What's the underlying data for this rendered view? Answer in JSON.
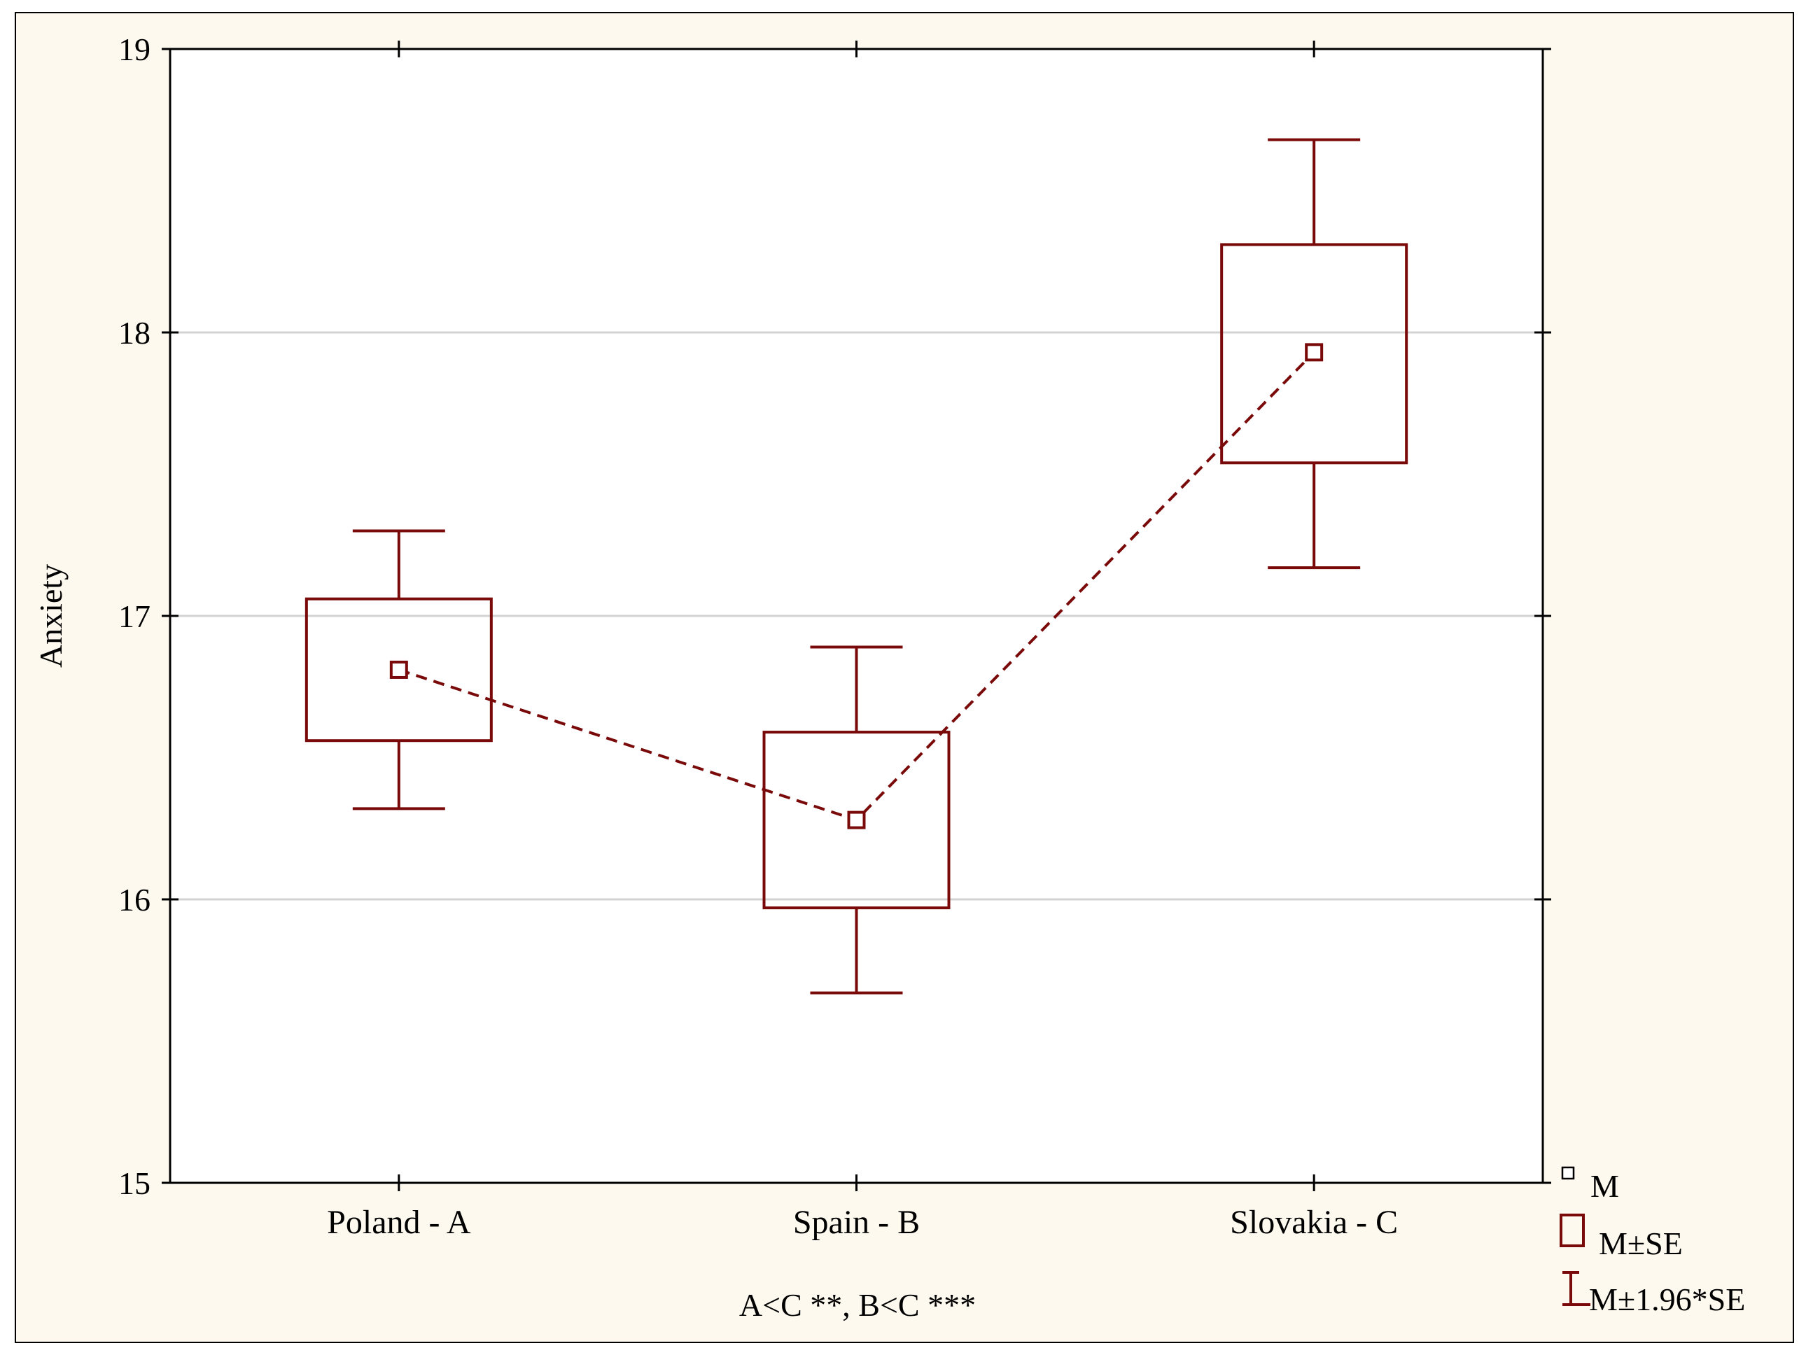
{
  "chart_data": {
    "type": "box",
    "categories": [
      "Poland - A",
      "Spain - B",
      "Slovakia - C"
    ],
    "ylabel": "Anxiety",
    "xlabel": "A<C **, B<C ***",
    "ylim": [
      15,
      19
    ],
    "yticks": [
      15,
      16,
      17,
      18,
      19
    ],
    "grid": true,
    "series": [
      {
        "name": "M",
        "values": [
          16.81,
          16.28,
          17.93
        ]
      },
      {
        "name": "M±SE",
        "low": [
          16.56,
          15.97,
          17.54
        ],
        "high": [
          17.06,
          16.59,
          18.31
        ]
      },
      {
        "name": "M±1.96*SE",
        "low": [
          16.32,
          15.67,
          17.17
        ],
        "high": [
          17.3,
          16.89,
          18.68
        ]
      }
    ],
    "legend": {
      "position": "bottom-right",
      "entries": [
        "M",
        "M±SE",
        "M±1.96*SE"
      ]
    }
  },
  "colors": {
    "series": "#7a0a0a",
    "panel_background": "#fdf9ee",
    "gridline": "#d3d3d3"
  }
}
